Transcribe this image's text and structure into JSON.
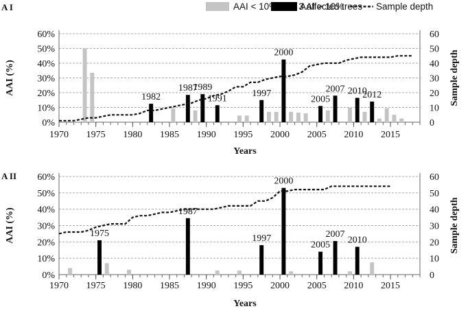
{
  "legend": {
    "light": "AAI < 10% or  < 3 affected trees",
    "dark": "AAI > 10%",
    "line": "Sample depth"
  },
  "colors": {
    "light_bar": "#c4c4c4",
    "dark_bar": "#000000",
    "line": "#111111",
    "grid": "#a8a8a8"
  },
  "chart_data": [
    {
      "type": "bar",
      "panel_label": "A I",
      "xlabel": "Years",
      "ylabel_left": "AAI (%)",
      "ylabel_right": "Sample depth",
      "xlim": [
        1970,
        2019
      ],
      "ylim_left": [
        0,
        60
      ],
      "ylim_right": [
        0,
        60
      ],
      "x_ticks": [
        1970,
        1975,
        1980,
        1985,
        1990,
        1995,
        2000,
        2005,
        2010,
        2015
      ],
      "y_ticks_left": [
        "0%",
        "10%",
        "20%",
        "30%",
        "40%",
        "50%",
        "60%"
      ],
      "y_ticks_right": [
        "0",
        "10",
        "20",
        "30",
        "40",
        "50",
        "60"
      ],
      "series": [
        {
          "name": "AAI < 10% or  < 3 affected trees",
          "points": [
            {
              "year": 1973,
              "value": 50
            },
            {
              "year": 1974,
              "value": 33.5
            },
            {
              "year": 1985,
              "value": 9.5
            },
            {
              "year": 1988,
              "value": 8
            },
            {
              "year": 1994,
              "value": 4.5
            },
            {
              "year": 1995,
              "value": 4.5
            },
            {
              "year": 1998,
              "value": 7
            },
            {
              "year": 1999,
              "value": 7
            },
            {
              "year": 2001,
              "value": 7
            },
            {
              "year": 2002,
              "value": 6.5
            },
            {
              "year": 2003,
              "value": 6
            },
            {
              "year": 2006,
              "value": 8
            },
            {
              "year": 2009,
              "value": 10
            },
            {
              "year": 2011,
              "value": 7
            },
            {
              "year": 2013,
              "value": 2.5
            },
            {
              "year": 2014,
              "value": 9.5
            },
            {
              "year": 2015,
              "value": 5
            },
            {
              "year": 2016,
              "value": 2.5
            }
          ]
        },
        {
          "name": "AAI > 10%",
          "points": [
            {
              "year": 1982,
              "value": 12.5,
              "label": "1982"
            },
            {
              "year": 1987,
              "value": 18.5,
              "label": "1987"
            },
            {
              "year": 1989,
              "value": 19,
              "label": "1989"
            },
            {
              "year": 1991,
              "value": 11.5,
              "label": "1991"
            },
            {
              "year": 1997,
              "value": 15,
              "label": "1997"
            },
            {
              "year": 2000,
              "value": 42.5,
              "label": "2000"
            },
            {
              "year": 2005,
              "value": 11,
              "label": "2005"
            },
            {
              "year": 2007,
              "value": 18,
              "label": "2007"
            },
            {
              "year": 2010,
              "value": 16.5,
              "label": "2010"
            },
            {
              "year": 2012,
              "value": 14,
              "label": "2012"
            }
          ]
        },
        {
          "name": "Sample depth",
          "axis": "right",
          "line": [
            [
              1970,
              1
            ],
            [
              1972,
              1
            ],
            [
              1973,
              2
            ],
            [
              1974,
              3
            ],
            [
              1975,
              3
            ],
            [
              1976,
              4
            ],
            [
              1977,
              5
            ],
            [
              1978,
              5
            ],
            [
              1979,
              5
            ],
            [
              1980,
              5
            ],
            [
              1981,
              6
            ],
            [
              1982,
              8
            ],
            [
              1983,
              8
            ],
            [
              1984,
              9
            ],
            [
              1985,
              10
            ],
            [
              1986,
              11
            ],
            [
              1987,
              12
            ],
            [
              1988,
              13
            ],
            [
              1989,
              15
            ],
            [
              1990,
              16
            ],
            [
              1991,
              18
            ],
            [
              1992,
              19
            ],
            [
              1993,
              21
            ],
            [
              1994,
              24
            ],
            [
              1995,
              24
            ],
            [
              1996,
              27
            ],
            [
              1997,
              27
            ],
            [
              1998,
              29
            ],
            [
              1999,
              30
            ],
            [
              2000,
              31
            ],
            [
              2001,
              31
            ],
            [
              2002,
              32
            ],
            [
              2003,
              34
            ],
            [
              2004,
              38
            ],
            [
              2005,
              39
            ],
            [
              2006,
              40
            ],
            [
              2007,
              40
            ],
            [
              2008,
              40
            ],
            [
              2009,
              42
            ],
            [
              2010,
              43
            ],
            [
              2011,
              44
            ],
            [
              2012,
              44
            ],
            [
              2013,
              44
            ],
            [
              2014,
              44
            ],
            [
              2015,
              44
            ],
            [
              2016,
              45
            ],
            [
              2017,
              45
            ],
            [
              2018,
              45
            ]
          ]
        }
      ]
    },
    {
      "type": "bar",
      "panel_label": "A II",
      "xlabel": "Years",
      "ylabel_left": "AAI (%)",
      "ylabel_right": "Sample depth",
      "xlim": [
        1970,
        2019
      ],
      "ylim_left": [
        0,
        60
      ],
      "ylim_right": [
        0,
        60
      ],
      "x_ticks": [
        1970,
        1975,
        1980,
        1985,
        1990,
        1995,
        2000,
        2005,
        2010,
        2015
      ],
      "y_ticks_left": [
        "0%",
        "10%",
        "20%",
        "30%",
        "40%",
        "50%",
        "60%"
      ],
      "y_ticks_right": [
        "0",
        "10",
        "20",
        "30",
        "40",
        "50",
        "60"
      ],
      "series": [
        {
          "name": "AAI < 10% or  < 3 affected trees",
          "points": [
            {
              "year": 1971,
              "value": 4
            },
            {
              "year": 1976,
              "value": 7
            },
            {
              "year": 1979,
              "value": 3
            },
            {
              "year": 1991,
              "value": 2.5
            },
            {
              "year": 1994,
              "value": 2.5
            },
            {
              "year": 2001,
              "value": 2
            },
            {
              "year": 2009,
              "value": 2
            },
            {
              "year": 2012,
              "value": 7.5
            }
          ]
        },
        {
          "name": "AAI > 10%",
          "points": [
            {
              "year": 1975,
              "value": 21,
              "label": "1975"
            },
            {
              "year": 1987,
              "value": 34.5,
              "label": "1987"
            },
            {
              "year": 1997,
              "value": 18,
              "label": "1997"
            },
            {
              "year": 2000,
              "value": 53,
              "label": "2000"
            },
            {
              "year": 2005,
              "value": 14,
              "label": "2005"
            },
            {
              "year": 2007,
              "value": 20.5,
              "label": "2007"
            },
            {
              "year": 2010,
              "value": 17,
              "label": "2010"
            }
          ]
        },
        {
          "name": "Sample depth",
          "axis": "right",
          "line": [
            [
              1970,
              25
            ],
            [
              1971,
              26
            ],
            [
              1972,
              26
            ],
            [
              1973,
              26
            ],
            [
              1974,
              27
            ],
            [
              1975,
              29
            ],
            [
              1976,
              30
            ],
            [
              1977,
              31
            ],
            [
              1978,
              31
            ],
            [
              1979,
              31
            ],
            [
              1980,
              35
            ],
            [
              1981,
              36
            ],
            [
              1982,
              36
            ],
            [
              1983,
              37
            ],
            [
              1984,
              38
            ],
            [
              1985,
              38
            ],
            [
              1986,
              39
            ],
            [
              1987,
              40
            ],
            [
              1988,
              40
            ],
            [
              1989,
              40
            ],
            [
              1990,
              40
            ],
            [
              1991,
              40
            ],
            [
              1992,
              41
            ],
            [
              1993,
              42
            ],
            [
              1994,
              42
            ],
            [
              1995,
              42
            ],
            [
              1996,
              42
            ],
            [
              1997,
              45
            ],
            [
              1998,
              45
            ],
            [
              1999,
              47
            ],
            [
              2000,
              51
            ],
            [
              2001,
              51
            ],
            [
              2002,
              52
            ],
            [
              2003,
              52
            ],
            [
              2004,
              52
            ],
            [
              2005,
              52
            ],
            [
              2006,
              52
            ],
            [
              2007,
              54
            ],
            [
              2008,
              54
            ],
            [
              2009,
              54
            ],
            [
              2010,
              54
            ],
            [
              2011,
              54
            ],
            [
              2012,
              54
            ],
            [
              2013,
              54
            ],
            [
              2014,
              54
            ],
            [
              2015,
              54
            ]
          ]
        }
      ]
    }
  ]
}
